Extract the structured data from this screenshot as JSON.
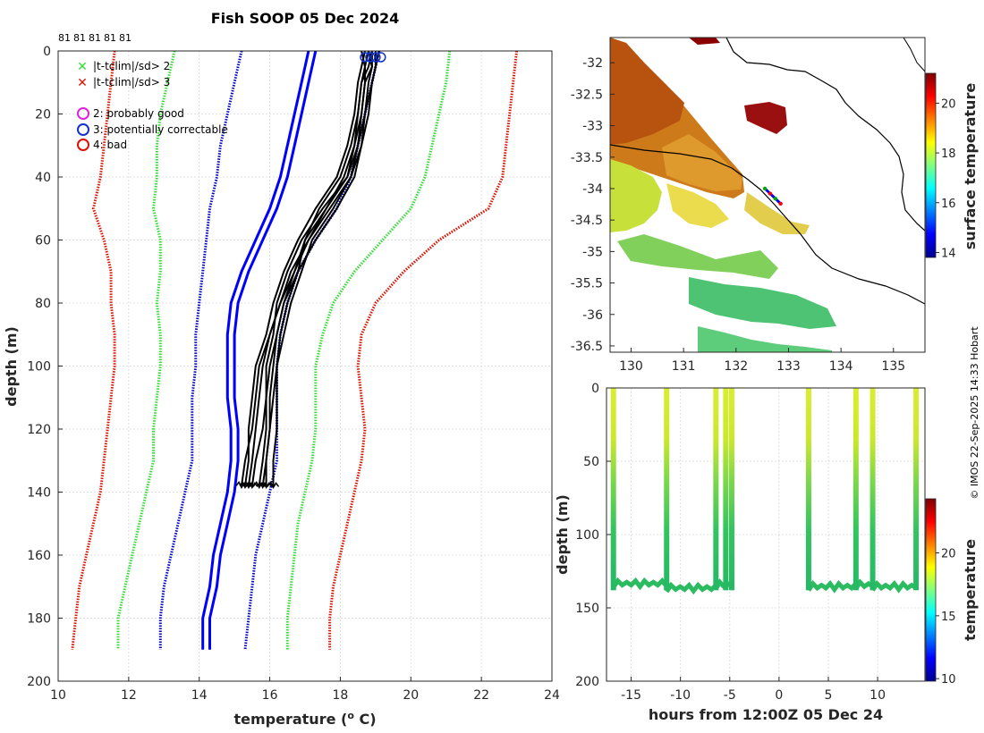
{
  "colors": {
    "clim_mean": "#0000ff",
    "sd1": "#0000cc",
    "sd2": "#33dd33",
    "sd3": "#dd1100",
    "profiles": "#000000",
    "land": "#8b0000"
  },
  "chart_data": [
    {
      "type": "line",
      "name": "profile-panel",
      "title": "Fish SOOP 05 Dec 2024",
      "xlabel": "temperature (o C)",
      "xlabel_base": "temperature (",
      "xlabel_sup": "o",
      "xlabel_tail": " C)",
      "ylabel": "depth (m)",
      "xlim": [
        10,
        24
      ],
      "ylim": [
        200,
        0
      ],
      "xticks": [
        "10",
        "12",
        "14",
        "16",
        "18",
        "20",
        "22",
        "24"
      ],
      "yticks": [
        "0",
        "20",
        "40",
        "60",
        "80",
        "100",
        "120",
        "140",
        "160",
        "180",
        "200"
      ],
      "top_labels": [
        "81",
        "81",
        "81",
        "81",
        "81"
      ],
      "legend": [
        {
          "symbol": "x",
          "color": "#33dd33",
          "label": "|t-tclim|/sd> 2"
        },
        {
          "symbol": "x",
          "color": "#dd1100",
          "label": "|t-tclim|/sd> 3"
        },
        {
          "symbol": "o",
          "color": "#dd22dd",
          "label": "2: probably good"
        },
        {
          "symbol": "o",
          "color": "#1133cc",
          "label": "3: potentially correctable"
        },
        {
          "symbol": "o",
          "color": "#dd1100",
          "label": "4: bad"
        }
      ],
      "depth": [
        0,
        10,
        20,
        30,
        40,
        50,
        60,
        70,
        80,
        90,
        100,
        110,
        120,
        130,
        140,
        150,
        160,
        170,
        180,
        190
      ],
      "series": [
        {
          "name": "clim-sd3-low",
          "style": "dotted",
          "color": "#dd1100",
          "values": [
            11.6,
            11.5,
            11.4,
            11.3,
            11.2,
            11.0,
            11.3,
            11.5,
            11.5,
            11.6,
            11.6,
            11.5,
            11.4,
            11.3,
            11.2,
            11.0,
            10.8,
            10.6,
            10.5,
            10.4
          ]
        },
        {
          "name": "clim-sd3-high",
          "style": "dotted",
          "color": "#dd1100",
          "values": [
            23.0,
            22.9,
            22.8,
            22.7,
            22.6,
            22.2,
            20.8,
            19.8,
            19.0,
            18.6,
            18.5,
            18.6,
            18.7,
            18.6,
            18.4,
            18.2,
            18.0,
            17.8,
            17.7,
            17.7
          ]
        },
        {
          "name": "clim-sd2-low",
          "style": "dotted",
          "color": "#33dd33",
          "values": [
            13.3,
            13.1,
            12.9,
            12.8,
            12.8,
            12.7,
            12.9,
            12.9,
            12.8,
            12.9,
            12.9,
            12.8,
            12.7,
            12.7,
            12.5,
            12.3,
            12.1,
            11.9,
            11.7,
            11.7
          ]
        },
        {
          "name": "clim-sd2-high",
          "style": "dotted",
          "color": "#33dd33",
          "values": [
            21.1,
            21.0,
            20.8,
            20.6,
            20.4,
            20.0,
            19.2,
            18.4,
            17.8,
            17.5,
            17.3,
            17.3,
            17.3,
            17.2,
            17.0,
            16.8,
            16.7,
            16.6,
            16.5,
            16.5
          ]
        },
        {
          "name": "clim-sd1-low",
          "style": "dotted",
          "color": "#0000cc",
          "values": [
            15.2,
            15.0,
            14.8,
            14.6,
            14.5,
            14.3,
            14.2,
            14.1,
            14.0,
            13.9,
            13.9,
            13.8,
            13.8,
            13.8,
            13.6,
            13.4,
            13.2,
            13.0,
            12.9,
            12.9
          ]
        },
        {
          "name": "clim-sd1-high",
          "style": "dotted",
          "color": "#0000cc",
          "values": [
            19.1,
            18.9,
            18.7,
            18.5,
            18.3,
            17.9,
            17.3,
            16.8,
            16.5,
            16.3,
            16.2,
            16.2,
            16.2,
            16.2,
            16.0,
            15.8,
            15.6,
            15.5,
            15.4,
            15.3
          ]
        },
        {
          "name": "clim-mean-a",
          "style": "solid",
          "color": "#0000ff",
          "values": [
            17.1,
            16.9,
            16.7,
            16.5,
            16.3,
            16.0,
            15.6,
            15.2,
            14.9,
            14.8,
            14.8,
            14.8,
            14.9,
            14.9,
            14.8,
            14.6,
            14.4,
            14.3,
            14.1,
            14.1
          ]
        },
        {
          "name": "clim-mean-b",
          "style": "solid",
          "color": "#0000ff",
          "values": [
            17.3,
            17.1,
            16.9,
            16.7,
            16.5,
            16.2,
            15.8,
            15.4,
            15.1,
            15.0,
            15.0,
            15.0,
            15.1,
            15.1,
            15.0,
            14.8,
            14.6,
            14.5,
            14.3,
            14.3
          ]
        }
      ],
      "profiles": [
        {
          "name": "profile-1",
          "depth": [
            0,
            5,
            10,
            20,
            30,
            40,
            50,
            60,
            70,
            80,
            90,
            100,
            110,
            120,
            130,
            138
          ],
          "values": [
            18.8,
            18.9,
            18.7,
            18.6,
            18.5,
            18.3,
            17.8,
            17.2,
            16.9,
            16.6,
            16.4,
            16.2,
            16.1,
            16.0,
            15.9,
            15.8
          ]
        },
        {
          "name": "profile-2",
          "depth": [
            0,
            5,
            10,
            20,
            30,
            40,
            50,
            60,
            70,
            80,
            90,
            100,
            110,
            120,
            130,
            138
          ],
          "values": [
            18.6,
            18.7,
            18.6,
            18.5,
            18.4,
            18.2,
            17.6,
            17.0,
            16.7,
            16.4,
            16.2,
            16.0,
            15.9,
            15.9,
            15.8,
            15.7
          ]
        },
        {
          "name": "profile-3",
          "depth": [
            0,
            5,
            10,
            20,
            30,
            40,
            50,
            60,
            70,
            80,
            90,
            100,
            110,
            120,
            130,
            138
          ],
          "values": [
            19.0,
            19.0,
            18.9,
            18.8,
            18.6,
            18.3,
            17.7,
            17.1,
            16.6,
            16.3,
            16.0,
            15.8,
            15.7,
            15.6,
            15.5,
            15.4
          ]
        },
        {
          "name": "profile-4",
          "depth": [
            0,
            5,
            10,
            20,
            30,
            40,
            50,
            60,
            70,
            80,
            90,
            100,
            110,
            120,
            130,
            138
          ],
          "values": [
            18.9,
            18.8,
            18.6,
            18.5,
            18.3,
            18.0,
            17.4,
            17.0,
            16.8,
            16.5,
            16.3,
            16.2,
            16.2,
            16.2,
            16.1,
            16.1
          ]
        },
        {
          "name": "profile-5",
          "depth": [
            0,
            5,
            10,
            20,
            30,
            40,
            50,
            60,
            70,
            80,
            90,
            100,
            110,
            120,
            130,
            138
          ],
          "values": [
            18.7,
            18.6,
            18.5,
            18.4,
            18.2,
            17.9,
            17.3,
            16.8,
            16.4,
            16.1,
            15.9,
            15.6,
            15.5,
            15.4,
            15.4,
            15.3
          ]
        },
        {
          "name": "profile-6",
          "depth": [
            0,
            5,
            10,
            20,
            30,
            40,
            50,
            60,
            70,
            80,
            90,
            100,
            110,
            120,
            130,
            138
          ],
          "values": [
            18.9,
            18.9,
            18.8,
            18.7,
            18.5,
            18.2,
            17.5,
            16.9,
            16.5,
            16.2,
            16.1,
            15.9,
            15.9,
            15.8,
            15.6,
            15.5
          ]
        },
        {
          "name": "profile-7",
          "depth": [
            0,
            5,
            10,
            20,
            30,
            40,
            50,
            60,
            70,
            80,
            90,
            100,
            110,
            120,
            130,
            138
          ],
          "values": [
            18.8,
            18.7,
            18.7,
            18.6,
            18.4,
            18.1,
            17.6,
            17.1,
            16.7,
            16.3,
            16.0,
            15.7,
            15.6,
            15.5,
            15.3,
            15.2
          ]
        },
        {
          "name": "profile-8",
          "depth": [
            0,
            5,
            10,
            20,
            30,
            40,
            50,
            60,
            70,
            80,
            90,
            100,
            110,
            120,
            130,
            138
          ],
          "values": [
            19.1,
            19.0,
            18.9,
            18.7,
            18.6,
            18.4,
            17.9,
            17.3,
            16.8,
            16.4,
            16.2,
            16.1,
            16.0,
            16.0,
            15.9,
            15.9
          ]
        }
      ]
    },
    {
      "type": "heatmap",
      "name": "sst-map",
      "xlim": [
        129.6,
        135.6
      ],
      "ylim": [
        -36.6,
        -31.6
      ],
      "xticks": [
        "130",
        "131",
        "132",
        "133",
        "134",
        "135"
      ],
      "yticks": [
        "-32",
        "-32.5",
        "-33",
        "-33.5",
        "-34",
        "-34.5",
        "-35",
        "-35.5",
        "-36",
        "-36.5"
      ],
      "colorbar_label": "surface temperature",
      "colorbar_range": [
        13.8,
        21.2
      ],
      "colorbar_ticks": [
        "14",
        "16",
        "18",
        "20"
      ],
      "track": {
        "lon": [
          132.55,
          132.65,
          132.75,
          132.85
        ],
        "lat": [
          -34.0,
          -34.08,
          -34.16,
          -34.24
        ]
      }
    },
    {
      "type": "scatter",
      "name": "depth-time",
      "xlabel": "hours from 12:00Z 05 Dec 24",
      "ylabel": "depth (m)",
      "xlim": [
        -17.5,
        14.8
      ],
      "ylim": [
        200,
        0
      ],
      "xticks": [
        "-15",
        "-10",
        "-5",
        "0",
        "5",
        "10"
      ],
      "yticks": [
        "0",
        "50",
        "100",
        "150",
        "200"
      ],
      "colorbar_label": "temperature",
      "colorbar_range": [
        9.8,
        24.3
      ],
      "colorbar_ticks": [
        "10",
        "15",
        "20"
      ],
      "casts_hours": [
        -16.8,
        -11.4,
        -6.4,
        -5.4,
        -4.8,
        3.0,
        7.8,
        9.5,
        13.9
      ],
      "bottom_segments": [
        {
          "from": -16.8,
          "to": -11.4,
          "depth": 133
        },
        {
          "from": -11.4,
          "to": -6.4,
          "depth": 136
        },
        {
          "from": -6.4,
          "to": -4.8,
          "depth": 134
        },
        {
          "from": 3.0,
          "to": 7.8,
          "depth": 135
        },
        {
          "from": 7.8,
          "to": 9.5,
          "depth": 134
        },
        {
          "from": 9.5,
          "to": 13.9,
          "depth": 135
        }
      ]
    }
  ],
  "credit": "© IMOS 22-Sep-2025 14:33 Hobart"
}
